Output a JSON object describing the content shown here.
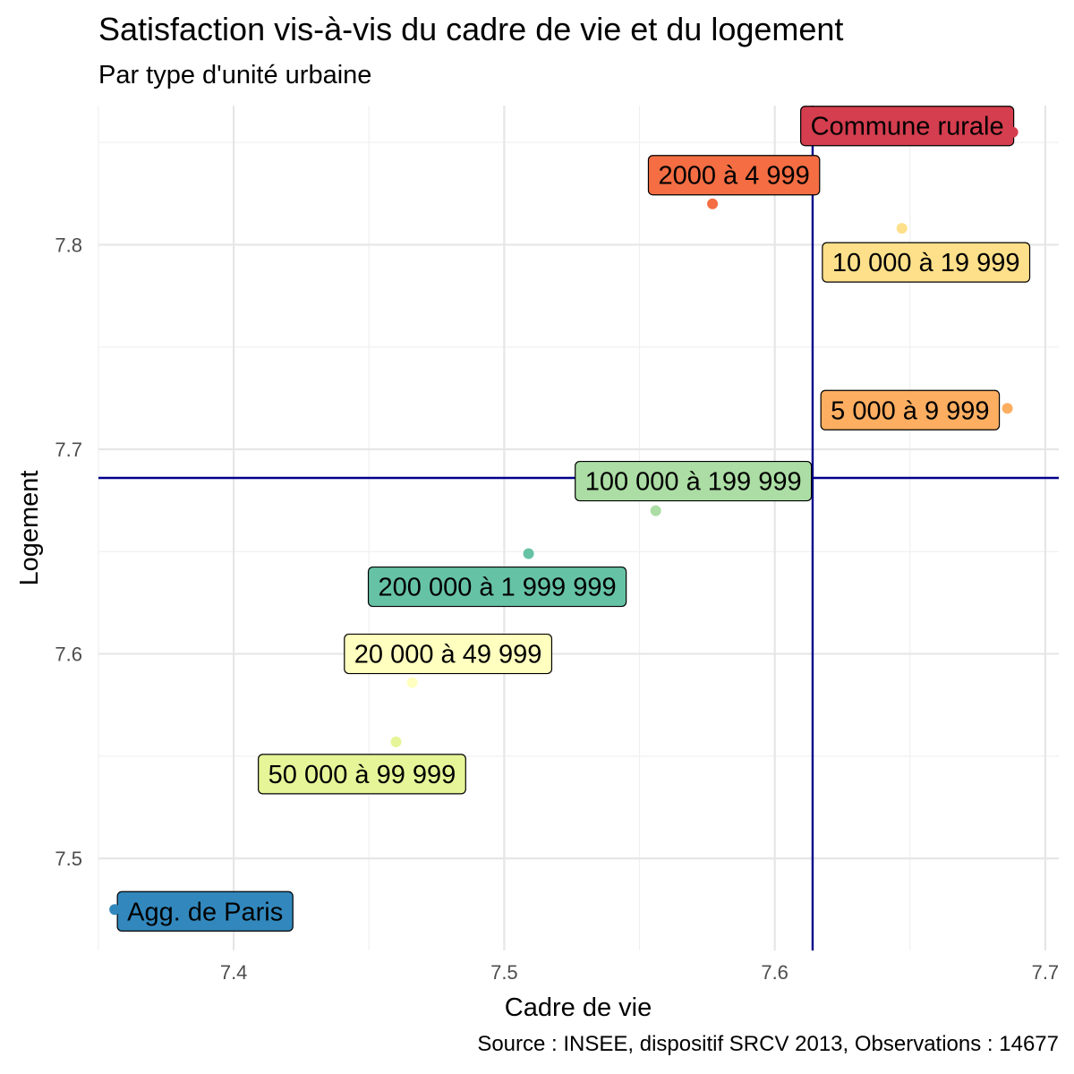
{
  "chart_data": {
    "type": "scatter",
    "title": "Satisfaction vis-à-vis du cadre de vie et du logement",
    "subtitle": "Par type d'unité urbaine",
    "caption": "Source : INSEE, dispositif SRCV 2013, Observations : 14677",
    "xlabel": "Cadre de vie",
    "ylabel": "Logement",
    "xlim": [
      7.35,
      7.705
    ],
    "ylim": [
      7.455,
      7.868
    ],
    "xticks": [
      7.4,
      7.5,
      7.6,
      7.7
    ],
    "xtick_labels": [
      "7.4",
      "7.5",
      "7.6",
      "7.7"
    ],
    "yticks": [
      7.5,
      7.6,
      7.7,
      7.8
    ],
    "ytick_labels": [
      "7.5",
      "7.6",
      "7.7",
      "7.8"
    ],
    "grid": true,
    "reference_lines": {
      "x": 7.614,
      "y": 7.686,
      "color": "#00008b"
    },
    "points": [
      {
        "label": "Commune rurale",
        "x": 7.688,
        "y": 7.855,
        "color": "#d53e4f"
      },
      {
        "label": "2000 à 4 999",
        "x": 7.577,
        "y": 7.82,
        "color": "#f46d43"
      },
      {
        "label": "10 000 à 19 999",
        "x": 7.647,
        "y": 7.808,
        "color": "#fee08b"
      },
      {
        "label": "5 000 à 9 999",
        "x": 7.686,
        "y": 7.72,
        "color": "#fdae61"
      },
      {
        "label": "100 000 à 199 999",
        "x": 7.556,
        "y": 7.67,
        "color": "#abdda4"
      },
      {
        "label": "200 000 à 1 999 999",
        "x": 7.509,
        "y": 7.649,
        "color": "#66c2a5"
      },
      {
        "label": "20 000 à 49 999",
        "x": 7.466,
        "y": 7.586,
        "color": "#ffffbf"
      },
      {
        "label": "50 000 à 99 999",
        "x": 7.46,
        "y": 7.557,
        "color": "#e6f598"
      },
      {
        "label": "Agg. de Paris",
        "x": 7.356,
        "y": 7.475,
        "color": "#3288bd"
      }
    ]
  }
}
